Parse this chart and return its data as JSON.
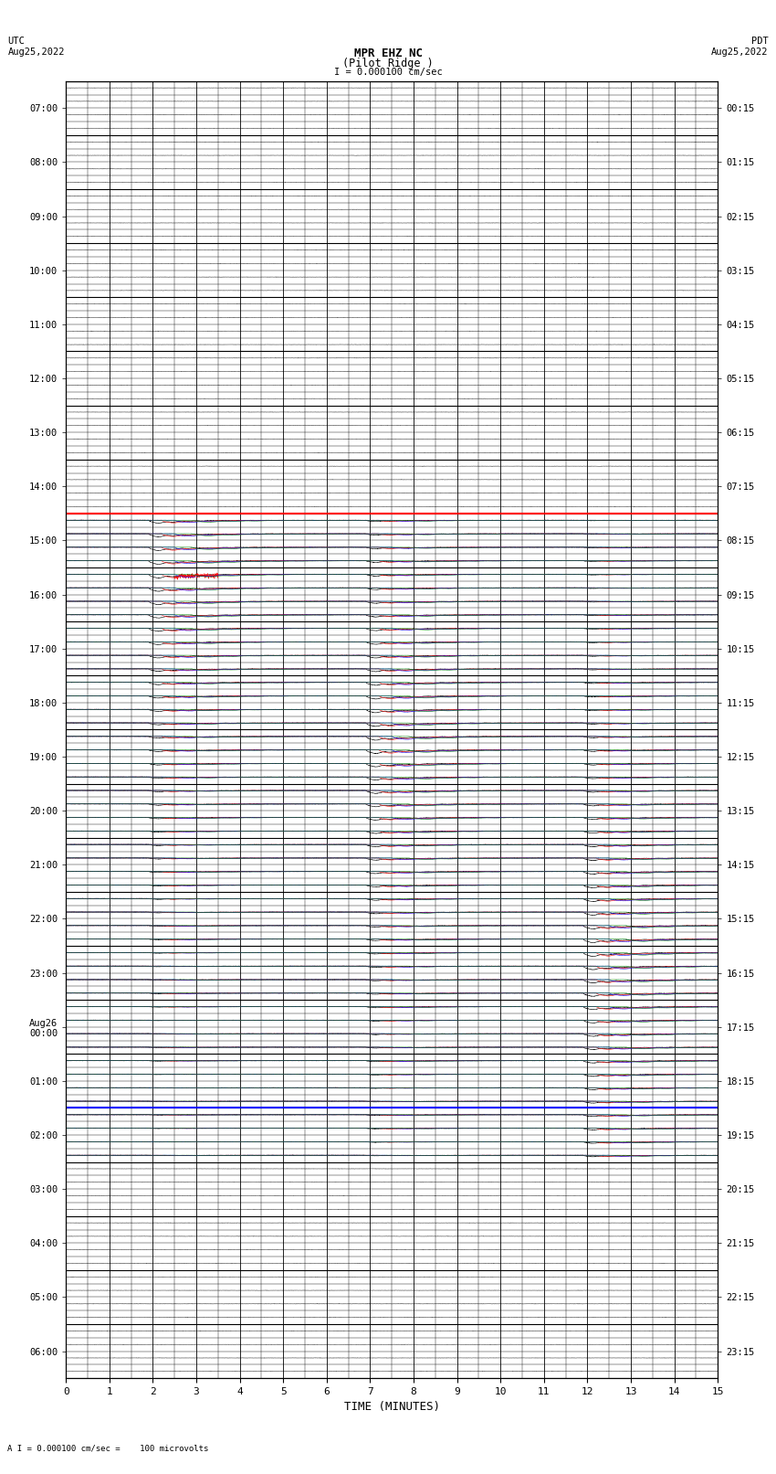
{
  "title_line1": "MPR EHZ NC",
  "title_line2": "(Pilot Ridge )",
  "scale_text": "I = 0.000100 cm/sec",
  "footer_text": "A I = 0.000100 cm/sec =    100 microvolts",
  "left_header_line1": "UTC",
  "left_header_line2": "Aug25,2022",
  "right_header_line1": "PDT",
  "right_header_line2": "Aug25,2022",
  "xlabel": "TIME (MINUTES)",
  "xlim": [
    0,
    15
  ],
  "xticks": [
    0,
    1,
    2,
    3,
    4,
    5,
    6,
    7,
    8,
    9,
    10,
    11,
    12,
    13,
    14,
    15
  ],
  "figsize": [
    8.5,
    16.13
  ],
  "dpi": 100,
  "bg_color": "#ffffff",
  "grid_color": "#000000",
  "utc_labels": [
    "07:00",
    "08:00",
    "09:00",
    "10:00",
    "11:00",
    "12:00",
    "13:00",
    "14:00",
    "15:00",
    "16:00",
    "17:00",
    "18:00",
    "19:00",
    "20:00",
    "21:00",
    "22:00",
    "23:00",
    "Aug26\n00:00",
    "01:00",
    "02:00",
    "03:00",
    "04:00",
    "05:00",
    "06:00"
  ],
  "pdt_labels": [
    "00:15",
    "01:15",
    "02:15",
    "03:15",
    "04:15",
    "05:15",
    "06:15",
    "07:15",
    "08:15",
    "09:15",
    "10:15",
    "11:15",
    "12:15",
    "13:15",
    "14:15",
    "15:15",
    "16:15",
    "17:15",
    "18:15",
    "19:15",
    "20:15",
    "21:15",
    "22:15",
    "23:15"
  ],
  "n_rows": 24,
  "n_subrows": 4,
  "red_line_row": 8,
  "blue_line_row": 19,
  "trace_color": "#000000",
  "red_color": "#ff0000",
  "blue_color": "#0000ff",
  "green_color": "#008000"
}
